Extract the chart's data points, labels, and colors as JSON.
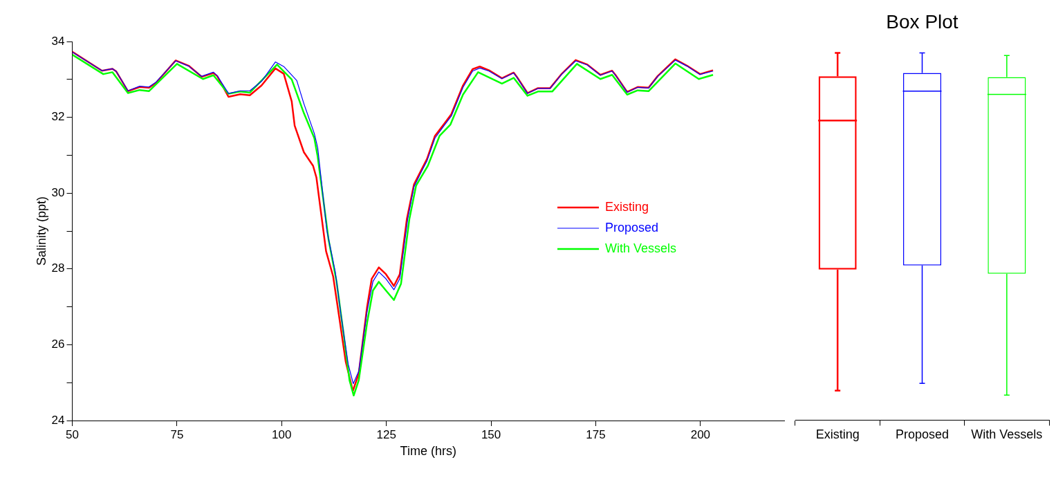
{
  "chart_data": [
    {
      "type": "line",
      "xlabel": "Time (hrs)",
      "ylabel": "Salinity (ppt)",
      "xlim": [
        50,
        220
      ],
      "xticks": [
        50,
        75,
        100,
        125,
        150,
        175,
        200
      ],
      "ylim": [
        24,
        34
      ],
      "yticks": [
        24,
        {
          "value": 25,
          "label": null
        },
        26,
        {
          "value": 27,
          "label": null
        },
        28,
        {
          "value": 29,
          "label": null
        },
        30,
        {
          "value": 31,
          "label": null
        },
        32,
        {
          "value": 33,
          "label": null
        },
        34
      ],
      "grid": false,
      "legend": "right",
      "marker": "none",
      "line_style": "solid",
      "series": [
        {
          "name": "Existing",
          "color": "#ff0000",
          "x": [
            50,
            57.1,
            59.6,
            60.5,
            63.3,
            66.1,
            68.3,
            70,
            74.7,
            77.8,
            80.9,
            83.7,
            84.6,
            87.3,
            90.1,
            92.4,
            95.2,
            98.5,
            100.5,
            102.4,
            103.1,
            105.3,
            107.5,
            108.3,
            108.9,
            110.6,
            112.3,
            113.7,
            115.3,
            117,
            118.4,
            120.4,
            121.5,
            123.2,
            124.9,
            126.8,
            128.2,
            129.9,
            131.6,
            133.3,
            134.7,
            136.6,
            138.9,
            140.5,
            143.3,
            145.6,
            147.3,
            149.5,
            152.6,
            155.4,
            156.2,
            158.7,
            161.2,
            164.1,
            166.9,
            170.2,
            173,
            176.1,
            178.9,
            179.7,
            182.5,
            185,
            187.6,
            189.8,
            194,
            196.8,
            199.9,
            203
          ],
          "values": [
            33.73,
            33.23,
            33.28,
            33.21,
            32.69,
            32.8,
            32.78,
            32.91,
            33.5,
            33.36,
            33.07,
            33.17,
            33.09,
            32.54,
            32.61,
            32.58,
            32.84,
            33.29,
            33.15,
            32.42,
            31.78,
            31.08,
            30.72,
            30.41,
            29.9,
            28.47,
            27.8,
            26.76,
            25.55,
            24.78,
            25.24,
            27,
            27.74,
            28.04,
            27.86,
            27.55,
            27.86,
            29.32,
            30.23,
            30.6,
            30.9,
            31.51,
            31.84,
            32.08,
            32.84,
            33.27,
            33.34,
            33.24,
            33.03,
            33.18,
            33.06,
            32.64,
            32.77,
            32.77,
            33.15,
            33.51,
            33.39,
            33.12,
            33.23,
            33.12,
            32.67,
            32.8,
            32.78,
            33.09,
            33.53,
            33.36,
            33.14,
            33.24
          ]
        },
        {
          "name": "Proposed",
          "color": "#0000ff",
          "x": [
            50,
            57.1,
            59.6,
            60.5,
            63.3,
            66.1,
            68.3,
            70,
            74.7,
            77.8,
            80.9,
            83.7,
            84.6,
            87.3,
            90.1,
            92.4,
            95.2,
            98.5,
            100.5,
            103.6,
            105.3,
            107.8,
            108.6,
            110.8,
            112.8,
            114.2,
            115.9,
            117.1,
            118.4,
            120.4,
            121.8,
            123.2,
            124.9,
            126.8,
            128.2,
            130.1,
            131.6,
            133.3,
            134.7,
            136.6,
            138.9,
            140.5,
            143.3,
            145.6,
            147.3,
            149.5,
            152.6,
            155.4,
            156.2,
            158.7,
            161.2,
            164.1,
            166.9,
            170.2,
            173,
            176.1,
            178.9,
            179.7,
            182.5,
            185,
            187.6,
            189.8,
            194,
            196.8,
            199.9,
            203
          ],
          "values": [
            33.72,
            33.23,
            33.28,
            33.21,
            32.7,
            32.82,
            32.8,
            32.93,
            33.49,
            33.35,
            33.08,
            33.19,
            33.1,
            32.63,
            32.7,
            32.7,
            32.95,
            33.46,
            33.34,
            32.97,
            32.36,
            31.57,
            31.2,
            29.01,
            27.92,
            26.76,
            25.48,
            24.97,
            25.3,
            26.88,
            27.67,
            27.92,
            27.74,
            27.45,
            27.74,
            29.32,
            30.17,
            30.55,
            30.85,
            31.45,
            31.8,
            32.03,
            32.79,
            33.22,
            33.3,
            33.22,
            33.02,
            33.17,
            33.05,
            32.63,
            32.76,
            32.76,
            33.14,
            33.49,
            33.38,
            33.11,
            33.22,
            33.11,
            32.66,
            32.79,
            32.77,
            33.08,
            33.51,
            33.35,
            33.13,
            33.22
          ]
        },
        {
          "name": "With Vessels",
          "color": "#00ff00",
          "x": [
            50,
            57.4,
            59.6,
            63.3,
            66.1,
            68.3,
            75,
            81.2,
            83.7,
            87.3,
            90.1,
            92.4,
            98.9,
            102.4,
            105.3,
            107.8,
            108.6,
            111.2,
            113.1,
            114.8,
            116.2,
            117.2,
            118.4,
            120.4,
            121.8,
            123.2,
            124.9,
            126.8,
            128.5,
            130.5,
            132.1,
            134.9,
            137.7,
            140.3,
            143.3,
            146.9,
            152.6,
            155.4,
            158.7,
            161.2,
            164.6,
            170.5,
            176.1,
            178.9,
            182.5,
            185,
            187.6,
            194,
            199.6,
            203
          ],
          "values": [
            33.65,
            33.14,
            33.19,
            32.64,
            32.72,
            32.69,
            33.41,
            33.01,
            33.11,
            32.62,
            32.68,
            32.65,
            33.39,
            33,
            32.11,
            31.45,
            30.96,
            28.77,
            27.67,
            26.28,
            25.06,
            24.66,
            25.06,
            26.58,
            27.43,
            27.66,
            27.43,
            27.18,
            27.61,
            29.32,
            30.2,
            30.72,
            31.51,
            31.81,
            32.6,
            33.19,
            32.89,
            33.04,
            32.57,
            32.68,
            32.68,
            33.41,
            33.01,
            33.12,
            32.6,
            32.71,
            32.69,
            33.42,
            33.01,
            33.12
          ]
        }
      ]
    },
    {
      "type": "box",
      "title": "Box Plot",
      "categories": [
        "Existing",
        "Proposed",
        "With Vessels"
      ],
      "colors": [
        "#ff0000",
        "#0000ff",
        "#00ff00"
      ],
      "ylim": [
        24,
        34
      ],
      "tick_labels": "x",
      "boxes": [
        {
          "low": 24.78,
          "q1": 27.98,
          "median": 31.92,
          "q3": 33.09,
          "high": 33.71
        },
        {
          "low": 24.97,
          "q1": 28.09,
          "median": 32.7,
          "q3": 33.18,
          "high": 33.71
        },
        {
          "low": 24.66,
          "q1": 27.87,
          "median": 32.61,
          "q3": 33.07,
          "high": 33.64
        }
      ]
    }
  ]
}
